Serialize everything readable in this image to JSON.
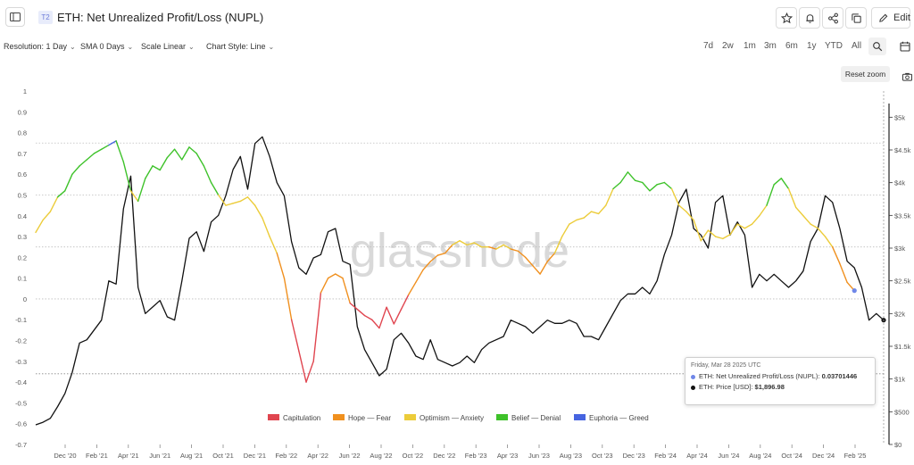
{
  "header": {
    "tier_badge": "T2",
    "title": "ETH: Net Unrealized Profit/Loss (NUPL)",
    "edit_label": "Edit",
    "icons": [
      "sidebar-toggle-icon",
      "star-icon",
      "bell-icon",
      "share-icon",
      "copy-icon",
      "pencil-icon"
    ]
  },
  "toolbar": {
    "resolution": "Resolution: 1 Day",
    "sma": "SMA 0 Days",
    "scale": "Scale Linear",
    "chart_style": "Chart Style: Line",
    "ranges": [
      "7d",
      "2w",
      "1m",
      "3m",
      "6m",
      "1y",
      "YTD",
      "All"
    ],
    "reset_zoom": "Reset zoom"
  },
  "tooltip": {
    "date": "Friday, Mar 28 2025 UTC",
    "nupl_label": "ETH: Net Unrealized Profit/Loss (NUPL):",
    "nupl_value": "0.03701446",
    "price_label": "ETH: Price [USD]:",
    "price_value": "$1,896.98",
    "nupl_color": "#6f87e8",
    "price_color": "#111111"
  },
  "chart_data": {
    "type": "line",
    "watermark": "glassnode",
    "x_ticks": [
      "Dec '20",
      "Feb '21",
      "Apr '21",
      "Jun '21",
      "Aug '21",
      "Oct '21",
      "Dec '21",
      "Feb '22",
      "Apr '22",
      "Jun '22",
      "Aug '22",
      "Oct '22",
      "Dec '22",
      "Feb '23",
      "Apr '23",
      "Jun '23",
      "Aug '23",
      "Oct '23",
      "Dec '23",
      "Feb '24",
      "Apr '24",
      "Jun '24",
      "Aug '24",
      "Oct '24",
      "Dec '24",
      "Feb '25"
    ],
    "y_left": {
      "min": -0.7,
      "max": 1,
      "ticks": [
        "1",
        "0.9",
        "0.8",
        "0.7",
        "0.6",
        "0.5",
        "0.4",
        "0.3",
        "0.2",
        "0.1",
        "0",
        "-0.1",
        "-0.2",
        "-0.3",
        "-0.4",
        "-0.5",
        "-0.6",
        "-0.7"
      ]
    },
    "y_right": {
      "min": 0,
      "max": 5400,
      "ticks": [
        "$5k",
        "$4.5k",
        "$4k",
        "$3.5k",
        "$3k",
        "$2.5k",
        "$2k",
        "$1.5k",
        "$1k",
        "$500",
        "$0"
      ]
    },
    "zones": [
      {
        "name": "Capitulation",
        "color": "#e0454f",
        "max": 0
      },
      {
        "name": "Hope — Fear",
        "color": "#f0901f",
        "max": 0.25
      },
      {
        "name": "Optimism — Anxiety",
        "color": "#eccc3a",
        "max": 0.5
      },
      {
        "name": "Belief — Denial",
        "color": "#3ec22a",
        "max": 0.75
      },
      {
        "name": "Euphoria — Greed",
        "color": "#4664e0",
        "max": 1
      }
    ],
    "series": [
      {
        "name": "ETH: Net Unrealized Profit/Loss (NUPL)",
        "axis": "left",
        "points": [
          [
            0,
            0.32
          ],
          [
            0.5,
            0.38
          ],
          [
            1,
            0.42
          ],
          [
            1.5,
            0.49
          ],
          [
            2,
            0.52
          ],
          [
            2.5,
            0.6
          ],
          [
            3,
            0.64
          ],
          [
            3.5,
            0.67
          ],
          [
            4,
            0.7
          ],
          [
            4.5,
            0.72
          ],
          [
            5,
            0.74
          ],
          [
            5.5,
            0.76
          ],
          [
            6,
            0.66
          ],
          [
            6.5,
            0.52
          ],
          [
            7,
            0.47
          ],
          [
            7.5,
            0.58
          ],
          [
            8,
            0.64
          ],
          [
            8.5,
            0.62
          ],
          [
            9,
            0.68
          ],
          [
            9.5,
            0.72
          ],
          [
            10,
            0.67
          ],
          [
            10.5,
            0.73
          ],
          [
            11,
            0.7
          ],
          [
            11.5,
            0.64
          ],
          [
            12,
            0.56
          ],
          [
            12.5,
            0.5
          ],
          [
            13,
            0.45
          ],
          [
            13.5,
            0.46
          ],
          [
            14,
            0.47
          ],
          [
            14.5,
            0.49
          ],
          [
            15,
            0.45
          ],
          [
            15.5,
            0.39
          ],
          [
            16,
            0.3
          ],
          [
            16.5,
            0.22
          ],
          [
            17,
            0.1
          ],
          [
            17.5,
            -0.1
          ],
          [
            18,
            -0.25
          ],
          [
            18.5,
            -0.4
          ],
          [
            19,
            -0.3
          ],
          [
            19.5,
            0.03
          ],
          [
            20,
            0.1
          ],
          [
            20.5,
            0.12
          ],
          [
            21,
            0.1
          ],
          [
            21.5,
            -0.02
          ],
          [
            22,
            -0.05
          ],
          [
            22.5,
            -0.08
          ],
          [
            23,
            -0.1
          ],
          [
            23.5,
            -0.14
          ],
          [
            24,
            -0.04
          ],
          [
            24.5,
            -0.12
          ],
          [
            25,
            -0.05
          ],
          [
            25.5,
            0.02
          ],
          [
            26,
            0.08
          ],
          [
            26.5,
            0.14
          ],
          [
            27,
            0.18
          ],
          [
            27.5,
            0.21
          ],
          [
            28,
            0.22
          ],
          [
            28.5,
            0.26
          ],
          [
            29,
            0.28
          ],
          [
            29.5,
            0.26
          ],
          [
            30,
            0.27
          ],
          [
            30.5,
            0.25
          ],
          [
            31,
            0.25
          ],
          [
            31.5,
            0.24
          ],
          [
            32,
            0.26
          ],
          [
            32.5,
            0.24
          ],
          [
            33,
            0.23
          ],
          [
            33.5,
            0.2
          ],
          [
            34,
            0.16
          ],
          [
            34.5,
            0.12
          ],
          [
            35,
            0.18
          ],
          [
            35.5,
            0.22
          ],
          [
            36,
            0.3
          ],
          [
            36.5,
            0.36
          ],
          [
            37,
            0.38
          ],
          [
            37.5,
            0.39
          ],
          [
            38,
            0.42
          ],
          [
            38.5,
            0.41
          ],
          [
            39,
            0.45
          ],
          [
            39.5,
            0.53
          ],
          [
            40,
            0.56
          ],
          [
            40.5,
            0.61
          ],
          [
            41,
            0.57
          ],
          [
            41.5,
            0.56
          ],
          [
            42,
            0.52
          ],
          [
            42.5,
            0.55
          ],
          [
            43,
            0.56
          ],
          [
            43.5,
            0.53
          ],
          [
            44,
            0.45
          ],
          [
            44.5,
            0.42
          ],
          [
            45,
            0.38
          ],
          [
            45.5,
            0.28
          ],
          [
            46,
            0.33
          ],
          [
            46.5,
            0.3
          ],
          [
            47,
            0.29
          ],
          [
            47.5,
            0.31
          ],
          [
            48,
            0.36
          ],
          [
            48.5,
            0.34
          ],
          [
            49,
            0.36
          ],
          [
            49.5,
            0.4
          ],
          [
            50,
            0.45
          ],
          [
            50.5,
            0.55
          ],
          [
            51,
            0.58
          ],
          [
            51.5,
            0.53
          ],
          [
            52,
            0.44
          ],
          [
            52.5,
            0.4
          ],
          [
            53,
            0.36
          ],
          [
            53.5,
            0.34
          ],
          [
            54,
            0.3
          ],
          [
            54.5,
            0.25
          ],
          [
            55,
            0.17
          ],
          [
            55.5,
            0.08
          ],
          [
            56,
            0.04
          ]
        ]
      },
      {
        "name": "ETH: Price [USD]",
        "axis": "right",
        "color": "#111111",
        "points": [
          [
            0,
            300
          ],
          [
            0.5,
            340
          ],
          [
            1,
            400
          ],
          [
            1.5,
            580
          ],
          [
            2,
            780
          ],
          [
            2.5,
            1100
          ],
          [
            3,
            1550
          ],
          [
            3.5,
            1600
          ],
          [
            4,
            1750
          ],
          [
            4.5,
            1900
          ],
          [
            5,
            2500
          ],
          [
            5.5,
            2450
          ],
          [
            6,
            3600
          ],
          [
            6.5,
            4100
          ],
          [
            7,
            2400
          ],
          [
            7.5,
            2000
          ],
          [
            8,
            2100
          ],
          [
            8.5,
            2200
          ],
          [
            9,
            1950
          ],
          [
            9.5,
            1900
          ],
          [
            10,
            2500
          ],
          [
            10.5,
            3150
          ],
          [
            11,
            3250
          ],
          [
            11.5,
            2950
          ],
          [
            12,
            3400
          ],
          [
            12.5,
            3500
          ],
          [
            13,
            3800
          ],
          [
            13.5,
            4200
          ],
          [
            14,
            4400
          ],
          [
            14.5,
            3900
          ],
          [
            15,
            4600
          ],
          [
            15.5,
            4700
          ],
          [
            16,
            4400
          ],
          [
            16.5,
            4000
          ],
          [
            17,
            3800
          ],
          [
            17.5,
            3100
          ],
          [
            18,
            2700
          ],
          [
            18.5,
            2600
          ],
          [
            19,
            2850
          ],
          [
            19.5,
            2900
          ],
          [
            20,
            3250
          ],
          [
            20.5,
            3300
          ],
          [
            21,
            2800
          ],
          [
            21.5,
            2750
          ],
          [
            22,
            1800
          ],
          [
            22.5,
            1450
          ],
          [
            23,
            1250
          ],
          [
            23.5,
            1050
          ],
          [
            24,
            1150
          ],
          [
            24.5,
            1600
          ],
          [
            25,
            1700
          ],
          [
            25.5,
            1550
          ],
          [
            26,
            1350
          ],
          [
            26.5,
            1300
          ],
          [
            27,
            1600
          ],
          [
            27.5,
            1300
          ],
          [
            28,
            1250
          ],
          [
            28.5,
            1200
          ],
          [
            29,
            1250
          ],
          [
            29.5,
            1350
          ],
          [
            30,
            1250
          ],
          [
            30.5,
            1450
          ],
          [
            31,
            1550
          ],
          [
            31.5,
            1600
          ],
          [
            32,
            1650
          ],
          [
            32.5,
            1900
          ],
          [
            33,
            1850
          ],
          [
            33.5,
            1800
          ],
          [
            34,
            1700
          ],
          [
            34.5,
            1800
          ],
          [
            35,
            1900
          ],
          [
            35.5,
            1850
          ],
          [
            36,
            1850
          ],
          [
            36.5,
            1900
          ],
          [
            37,
            1850
          ],
          [
            37.5,
            1650
          ],
          [
            38,
            1650
          ],
          [
            38.5,
            1600
          ],
          [
            39,
            1800
          ],
          [
            39.5,
            2000
          ],
          [
            40,
            2200
          ],
          [
            40.5,
            2300
          ],
          [
            41,
            2300
          ],
          [
            41.5,
            2400
          ],
          [
            42,
            2300
          ],
          [
            42.5,
            2500
          ],
          [
            43,
            2900
          ],
          [
            43.5,
            3200
          ],
          [
            44,
            3700
          ],
          [
            44.5,
            3900
          ],
          [
            45,
            3300
          ],
          [
            45.5,
            3200
          ],
          [
            46,
            3000
          ],
          [
            46.5,
            3700
          ],
          [
            47,
            3800
          ],
          [
            47.5,
            3200
          ],
          [
            48,
            3400
          ],
          [
            48.5,
            3200
          ],
          [
            49,
            2400
          ],
          [
            49.5,
            2600
          ],
          [
            50,
            2500
          ],
          [
            50.5,
            2600
          ],
          [
            51,
            2500
          ],
          [
            51.5,
            2400
          ],
          [
            52,
            2500
          ],
          [
            52.5,
            2650
          ],
          [
            53,
            3100
          ],
          [
            53.5,
            3300
          ],
          [
            54,
            3800
          ],
          [
            54.5,
            3700
          ],
          [
            55,
            3300
          ],
          [
            55.5,
            2800
          ],
          [
            56,
            2700
          ],
          [
            56.5,
            2400
          ],
          [
            57,
            1900
          ],
          [
            57.5,
            2000
          ],
          [
            58,
            1900
          ]
        ]
      }
    ],
    "reference_lines_left": [
      0.75,
      0.5,
      0.25,
      0,
      -0.36
    ],
    "grid": false,
    "legend_position": "bottom"
  }
}
